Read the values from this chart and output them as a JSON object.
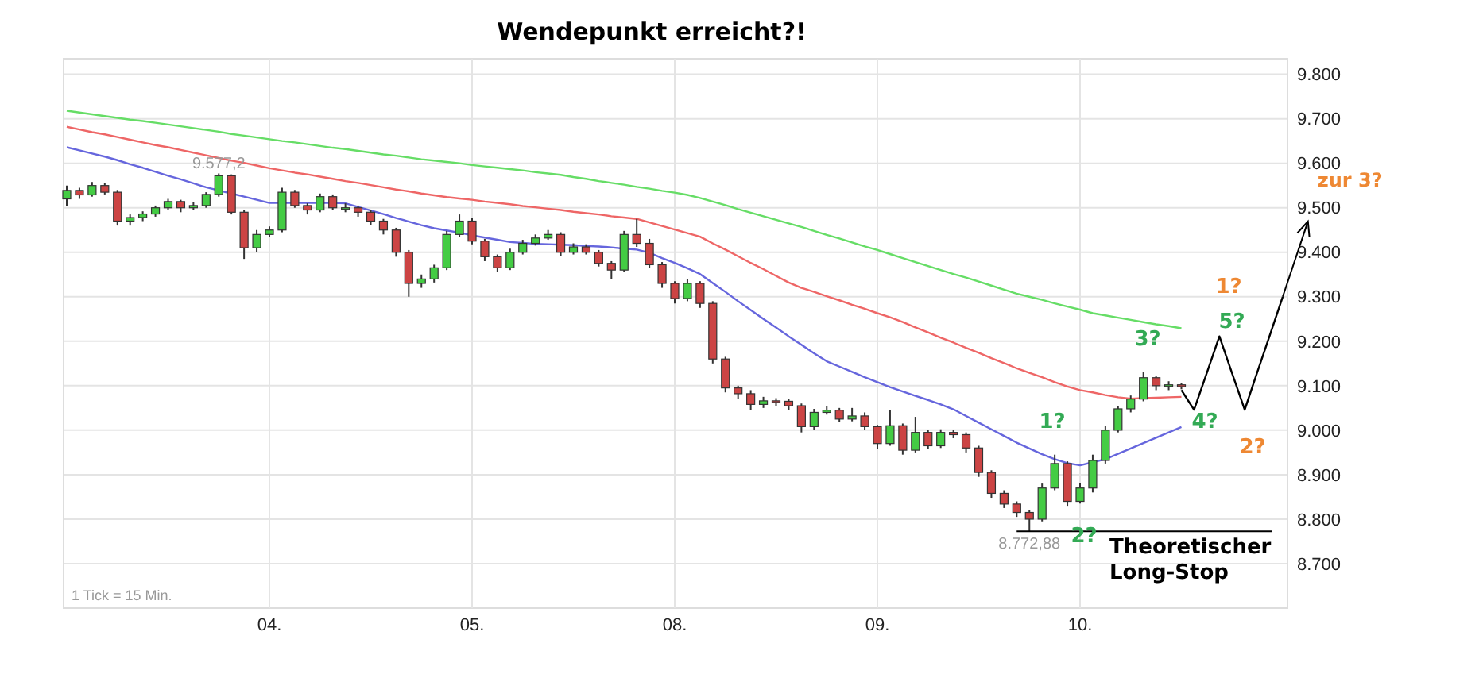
{
  "chart_data": {
    "type": "candlestick",
    "title": "Wendepunkt erreicht?!",
    "categories": [
      null,
      null,
      null,
      null,
      null,
      null,
      null,
      null,
      null,
      null,
      null,
      null,
      null,
      null,
      null,
      null,
      "04.",
      null,
      null,
      null,
      null,
      null,
      null,
      null,
      null,
      null,
      null,
      null,
      null,
      null,
      null,
      null,
      "05.",
      null,
      null,
      null,
      null,
      null,
      null,
      null,
      null,
      null,
      null,
      null,
      null,
      null,
      null,
      null,
      "08.",
      null,
      null,
      null,
      null,
      null,
      null,
      null,
      null,
      null,
      null,
      null,
      null,
      null,
      null,
      null,
      "09.",
      null,
      null,
      null,
      null,
      null,
      null,
      null,
      null,
      null,
      null,
      null,
      null,
      null,
      null,
      null,
      "10.",
      null,
      null,
      null,
      null,
      null,
      null,
      null,
      null,
      null,
      null,
      null,
      null,
      null,
      null,
      null,
      null
    ],
    "ohlc": [
      [
        9520,
        9550,
        9505,
        9539
      ],
      [
        9539,
        9545,
        9520,
        9529
      ],
      [
        9529,
        9558,
        9525,
        9550
      ],
      [
        9550,
        9555,
        9530,
        9535
      ],
      [
        9535,
        9540,
        9460,
        9470
      ],
      [
        9470,
        9485,
        9460,
        9478
      ],
      [
        9478,
        9492,
        9470,
        9486
      ],
      [
        9486,
        9505,
        9480,
        9500
      ],
      [
        9500,
        9520,
        9495,
        9514
      ],
      [
        9514,
        9518,
        9490,
        9500
      ],
      [
        9500,
        9512,
        9495,
        9505
      ],
      [
        9505,
        9535,
        9500,
        9530
      ],
      [
        9530,
        9577.2,
        9525,
        9572
      ],
      [
        9572,
        9575,
        9485,
        9490
      ],
      [
        9490,
        9495,
        9385,
        9410
      ],
      [
        9410,
        9450,
        9400,
        9440
      ],
      [
        9440,
        9458,
        9435,
        9450
      ],
      [
        9450,
        9545,
        9445,
        9535
      ],
      [
        9535,
        9540,
        9500,
        9505
      ],
      [
        9505,
        9510,
        9485,
        9495
      ],
      [
        9495,
        9532,
        9490,
        9525
      ],
      [
        9525,
        9530,
        9495,
        9500
      ],
      [
        9500,
        9510,
        9490,
        9500
      ],
      [
        9500,
        9505,
        9480,
        9490
      ],
      [
        9490,
        9495,
        9462,
        9470
      ],
      [
        9470,
        9475,
        9440,
        9450
      ],
      [
        9450,
        9455,
        9390,
        9400
      ],
      [
        9400,
        9405,
        9300,
        9330
      ],
      [
        9330,
        9350,
        9320,
        9340
      ],
      [
        9340,
        9372,
        9332,
        9365
      ],
      [
        9365,
        9448,
        9360,
        9440
      ],
      [
        9440,
        9485,
        9435,
        9470
      ],
      [
        9470,
        9478,
        9418,
        9425
      ],
      [
        9425,
        9430,
        9380,
        9390
      ],
      [
        9390,
        9395,
        9355,
        9365
      ],
      [
        9365,
        9408,
        9360,
        9400
      ],
      [
        9400,
        9428,
        9395,
        9420
      ],
      [
        9420,
        9440,
        9415,
        9432
      ],
      [
        9432,
        9450,
        9428,
        9440
      ],
      [
        9440,
        9445,
        9392,
        9400
      ],
      [
        9400,
        9420,
        9395,
        9412
      ],
      [
        9412,
        9418,
        9395,
        9400
      ],
      [
        9400,
        9405,
        9368,
        9375
      ],
      [
        9375,
        9380,
        9340,
        9360
      ],
      [
        9360,
        9448,
        9355,
        9440
      ],
      [
        9440,
        9475,
        9412,
        9420
      ],
      [
        9420,
        9430,
        9365,
        9372
      ],
      [
        9372,
        9378,
        9320,
        9330
      ],
      [
        9330,
        9335,
        9285,
        9296
      ],
      [
        9296,
        9340,
        9290,
        9330
      ],
      [
        9330,
        9335,
        9275,
        9285
      ],
      [
        9285,
        9290,
        9150,
        9160
      ],
      [
        9160,
        9165,
        9085,
        9095
      ],
      [
        9095,
        9100,
        9070,
        9082
      ],
      [
        9082,
        9090,
        9045,
        9058
      ],
      [
        9058,
        9075,
        9050,
        9066
      ],
      [
        9066,
        9072,
        9055,
        9065
      ],
      [
        9065,
        9070,
        9045,
        9055
      ],
      [
        9055,
        9060,
        8995,
        9008
      ],
      [
        9008,
        9048,
        9000,
        9040
      ],
      [
        9040,
        9055,
        9035,
        9045
      ],
      [
        9045,
        9050,
        9018,
        9025
      ],
      [
        9025,
        9050,
        9020,
        9032
      ],
      [
        9032,
        9040,
        9000,
        9008
      ],
      [
        9008,
        9012,
        8958,
        8970
      ],
      [
        8970,
        9045,
        8965,
        9010
      ],
      [
        9010,
        9015,
        8945,
        8955
      ],
      [
        8955,
        9030,
        8950,
        8995
      ],
      [
        8995,
        9000,
        8958,
        8965
      ],
      [
        8965,
        9002,
        8960,
        8995
      ],
      [
        8995,
        9000,
        8982,
        8990
      ],
      [
        8990,
        8995,
        8950,
        8960
      ],
      [
        8960,
        8965,
        8895,
        8905
      ],
      [
        8905,
        8910,
        8848,
        8858
      ],
      [
        8858,
        8865,
        8825,
        8834
      ],
      [
        8834,
        8840,
        8805,
        8815
      ],
      [
        8815,
        8820,
        8772.88,
        8800
      ],
      [
        8800,
        8880,
        8795,
        8870
      ],
      [
        8870,
        8945,
        8865,
        8925
      ],
      [
        8925,
        8930,
        8830,
        8840
      ],
      [
        8840,
        8880,
        8835,
        8870
      ],
      [
        8870,
        8945,
        8860,
        8932
      ],
      [
        8932,
        9010,
        8925,
        9000
      ],
      [
        9000,
        9055,
        8995,
        9048
      ],
      [
        9048,
        9078,
        9040,
        9070
      ],
      [
        9070,
        9130,
        9065,
        9118
      ],
      [
        9118,
        9122,
        9090,
        9100
      ],
      [
        9100,
        9110,
        9090,
        9102
      ],
      [
        9102,
        9106,
        9092,
        9098
      ],
      null,
      null,
      null,
      null,
      null,
      null,
      null,
      null
    ],
    "series": [
      {
        "type": "line",
        "color": "#66dd66",
        "values": [
          9718,
          9714,
          9710,
          9706,
          9702,
          9698,
          9695,
          9691,
          9687,
          9683,
          9679,
          9675,
          9671,
          9666,
          9662,
          9658,
          9654,
          9650,
          9647,
          9643,
          9639,
          9635,
          9632,
          9628,
          9624,
          9620,
          9617,
          9613,
          9609,
          9606,
          9603,
          9600,
          9596,
          9593,
          9590,
          9587,
          9584,
          9580,
          9577,
          9574,
          9569,
          9565,
          9560,
          9556,
          9552,
          9547,
          9543,
          9538,
          9534,
          9529,
          9522,
          9514,
          9506,
          9497,
          9489,
          9481,
          9473,
          9465,
          9457,
          9448,
          9439,
          9431,
          9422,
          9413,
          9405,
          9396,
          9387,
          9378,
          9369,
          9360,
          9351,
          9343,
          9334,
          9325,
          9316,
          9307,
          9300,
          9293,
          9285,
          9278,
          9271,
          9263,
          9258,
          9253,
          9248,
          9243,
          9238,
          9234,
          9229,
          null,
          null,
          null,
          null,
          null,
          null,
          null,
          null
        ]
      },
      {
        "type": "line",
        "color": "#ee6666",
        "values": [
          9682,
          9676,
          9670,
          9665,
          9659,
          9653,
          9647,
          9641,
          9636,
          9630,
          9624,
          9618,
          9612,
          9606,
          9601,
          9595,
          9589,
          9584,
          9579,
          9575,
          9570,
          9565,
          9560,
          9556,
          9551,
          9546,
          9541,
          9537,
          9532,
          9528,
          9524,
          9521,
          9518,
          9514,
          9511,
          9508,
          9504,
          9501,
          9498,
          9495,
          9491,
          9488,
          9485,
          9481,
          9478,
          9475,
          9467,
          9459,
          9451,
          9443,
          9435,
          9420,
          9406,
          9391,
          9376,
          9362,
          9347,
          9332,
          9320,
          9311,
          9301,
          9292,
          9282,
          9273,
          9263,
          9254,
          9243,
          9231,
          9220,
          9208,
          9197,
          9185,
          9174,
          9162,
          9151,
          9139,
          9129,
          9119,
          9108,
          9098,
          9090,
          9085,
          9079,
          9074,
          9071,
          9072,
          9073,
          9074,
          9075,
          null,
          null,
          null,
          null,
          null,
          null,
          null,
          null
        ]
      },
      {
        "type": "line",
        "color": "#6666dd",
        "values": [
          9636,
          9629,
          9622,
          9615,
          9607,
          9598,
          9590,
          9581,
          9572,
          9564,
          9555,
          9546,
          9539,
          9532,
          9525,
          9518,
          9511,
          9511,
          9511,
          9511,
          9511,
          9511,
          9510,
          9502,
          9494,
          9486,
          9477,
          9469,
          9461,
          9454,
          9449,
          9444,
          9438,
          9433,
          9428,
          9423,
          9421,
          9419,
          9418,
          9417,
          9416,
          9414,
          9413,
          9411,
          9408,
          9406,
          9399,
          9387,
          9376,
          9364,
          9351,
          9331,
          9311,
          9290,
          9270,
          9250,
          9231,
          9211,
          9192,
          9173,
          9155,
          9143,
          9131,
          9119,
          9108,
          9097,
          9087,
          9077,
          9068,
          9058,
          9047,
          9032,
          9017,
          9002,
          8987,
          8972,
          8959,
          8946,
          8935,
          8926,
          8921,
          8928,
          8935,
          8947,
          8959,
          8971,
          8983,
          8995,
          9007,
          null,
          null,
          null,
          null,
          null,
          null,
          null,
          null
        ]
      },
      {
        "type": "line",
        "color": "#000000",
        "values": [
          null,
          null,
          null,
          null,
          null,
          null,
          null,
          null,
          null,
          null,
          null,
          null,
          null,
          null,
          null,
          null,
          null,
          null,
          null,
          null,
          null,
          null,
          null,
          null,
          null,
          null,
          null,
          null,
          null,
          null,
          null,
          null,
          null,
          null,
          null,
          null,
          null,
          null,
          null,
          null,
          null,
          null,
          null,
          null,
          null,
          null,
          null,
          null,
          null,
          null,
          null,
          null,
          null,
          null,
          null,
          null,
          null,
          null,
          null,
          null,
          null,
          null,
          null,
          null,
          null,
          null,
          null,
          null,
          null,
          null,
          null,
          null,
          null,
          null,
          null,
          null,
          null,
          null,
          null,
          null,
          null,
          null,
          null,
          null,
          null,
          null,
          null,
          null,
          9090,
          9046,
          9128,
          9211,
          9128,
          9046,
          9131,
          9215,
          9300
        ]
      }
    ],
    "ylim": [
      8600,
      9835
    ],
    "yticks": [
      {
        "value": 8700,
        "label": "8.700"
      },
      {
        "value": 8800,
        "label": "8.800"
      },
      {
        "value": 8900,
        "label": "8.900"
      },
      {
        "value": 9000,
        "label": "9.000"
      },
      {
        "value": 9100,
        "label": "9.100"
      },
      {
        "value": 9200,
        "label": "9.200"
      },
      {
        "value": 9300,
        "label": "9.300"
      },
      {
        "value": 9400,
        "label": "9.400"
      },
      {
        "value": 9500,
        "label": "9.500"
      },
      {
        "value": 9600,
        "label": "9.600"
      },
      {
        "value": 9700,
        "label": "9.700"
      },
      {
        "value": 9800,
        "label": "9.800"
      }
    ],
    "grid": true,
    "ref_lines": [
      {
        "axis": "y",
        "value": 8772.88,
        "label": "Theoretischer Long-Stop"
      }
    ],
    "annotations": [
      {
        "text": "9.577,2",
        "y": 9577.2
      },
      {
        "text": "8.772,88",
        "y": 8772.88
      },
      "1?",
      "2?",
      "3?",
      "4?",
      "5?",
      "1?",
      "2?",
      "zur 3?",
      "1 Tick = 15 Min."
    ]
  }
}
